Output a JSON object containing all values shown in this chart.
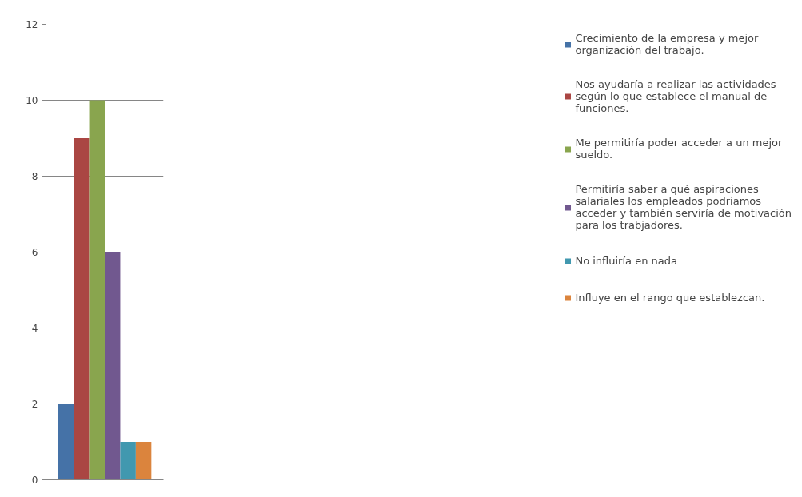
{
  "chart_data": {
    "type": "bar",
    "categories": [
      null
    ],
    "series": [
      {
        "name": "Crecimiento de la empresa y mejor organización del trabajo.",
        "color": "#4572a7",
        "values": [
          2
        ]
      },
      {
        "name": "Nos ayudaría a realizar las actividades según lo que establece el manual de funciones.",
        "color": "#aa4643",
        "values": [
          9
        ]
      },
      {
        "name": "Me permitiría poder acceder a un mejor sueldo.",
        "color": "#89a54e",
        "values": [
          10
        ]
      },
      {
        "name": "Permitiría saber a qué aspiraciones salariales los empleados podriamos acceder y también serviría de motivación para los trabjadores.",
        "color": "#71588f",
        "values": [
          6
        ]
      },
      {
        "name": "No influiría en nada",
        "color": "#4198af",
        "values": [
          1
        ]
      },
      {
        "name": "Influye en el rango que establezcan.",
        "color": "#db843d",
        "values": [
          1
        ]
      }
    ],
    "ylim": [
      0,
      12
    ],
    "yticks": [
      0,
      2,
      4,
      6,
      8,
      10,
      12
    ],
    "grid": "y",
    "legend": "right"
  }
}
